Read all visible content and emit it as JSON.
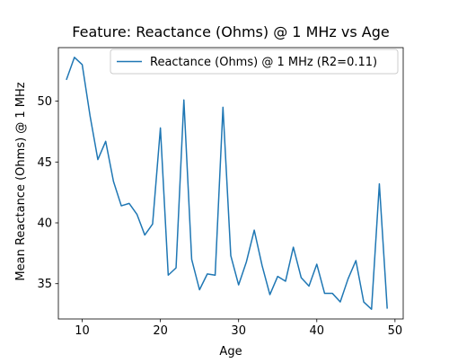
{
  "chart_data": {
    "type": "line",
    "title": "Feature: Reactance (Ohms) @ 1 MHz vs Age",
    "xlabel": "Age",
    "ylabel": "Mean Reactance (Ohms) @ 1 MHz",
    "xlim": [
      6.95,
      51.05
    ],
    "ylim": [
      32.1,
      54.4
    ],
    "xticks": [
      10,
      20,
      30,
      40,
      50
    ],
    "yticks": [
      35,
      40,
      45,
      50
    ],
    "grid": false,
    "legend_position": "top-right",
    "series": [
      {
        "name": "Reactance (Ohms) @ 1 MHz (R2=0.11)",
        "color": "#1f77b4",
        "x": [
          8,
          9,
          10,
          11,
          12,
          13,
          14,
          15,
          16,
          17,
          18,
          19,
          20,
          21,
          22,
          23,
          24,
          25,
          26,
          27,
          28,
          29,
          30,
          31,
          32,
          33,
          34,
          35,
          36,
          37,
          38,
          39,
          40,
          41,
          42,
          43,
          44,
          45,
          46,
          47,
          48,
          49
        ],
        "y": [
          51.8,
          53.6,
          53.0,
          48.8,
          45.2,
          46.7,
          43.4,
          41.4,
          41.6,
          40.7,
          39.0,
          39.9,
          47.8,
          35.7,
          36.3,
          50.1,
          37.0,
          34.5,
          35.8,
          35.7,
          49.5,
          37.3,
          34.9,
          36.8,
          39.4,
          36.5,
          34.1,
          35.6,
          35.2,
          38.0,
          35.5,
          34.8,
          36.6,
          34.2,
          34.2,
          33.5,
          35.4,
          36.9,
          33.5,
          32.9,
          43.2,
          33.0
        ]
      }
    ]
  }
}
